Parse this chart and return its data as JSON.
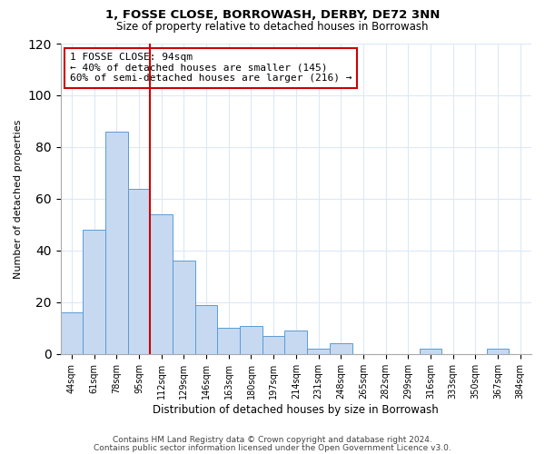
{
  "title": "1, FOSSE CLOSE, BORROWASH, DERBY, DE72 3NN",
  "subtitle": "Size of property relative to detached houses in Borrowash",
  "xlabel": "Distribution of detached houses by size in Borrowash",
  "ylabel": "Number of detached properties",
  "bar_labels": [
    "44sqm",
    "61sqm",
    "78sqm",
    "95sqm",
    "112sqm",
    "129sqm",
    "146sqm",
    "163sqm",
    "180sqm",
    "197sqm",
    "214sqm",
    "231sqm",
    "248sqm",
    "265sqm",
    "282sqm",
    "299sqm",
    "316sqm",
    "333sqm",
    "350sqm",
    "367sqm",
    "384sqm"
  ],
  "bar_values": [
    16,
    48,
    86,
    64,
    54,
    36,
    19,
    10,
    11,
    7,
    9,
    2,
    4,
    0,
    0,
    0,
    2,
    0,
    0,
    2,
    0
  ],
  "bar_color": "#c6d9f0",
  "bar_edge_color": "#5b9bd5",
  "vline_x": 3.5,
  "vline_color": "#cc0000",
  "ylim": [
    0,
    120
  ],
  "yticks": [
    0,
    20,
    40,
    60,
    80,
    100,
    120
  ],
  "annotation_text": "1 FOSSE CLOSE: 94sqm\n← 40% of detached houses are smaller (145)\n60% of semi-detached houses are larger (216) →",
  "annotation_box_edge": "#cc0000",
  "footer_line1": "Contains HM Land Registry data © Crown copyright and database right 2024.",
  "footer_line2": "Contains public sector information licensed under the Open Government Licence v3.0.",
  "background_color": "#ffffff",
  "grid_color": "#dce9f5"
}
